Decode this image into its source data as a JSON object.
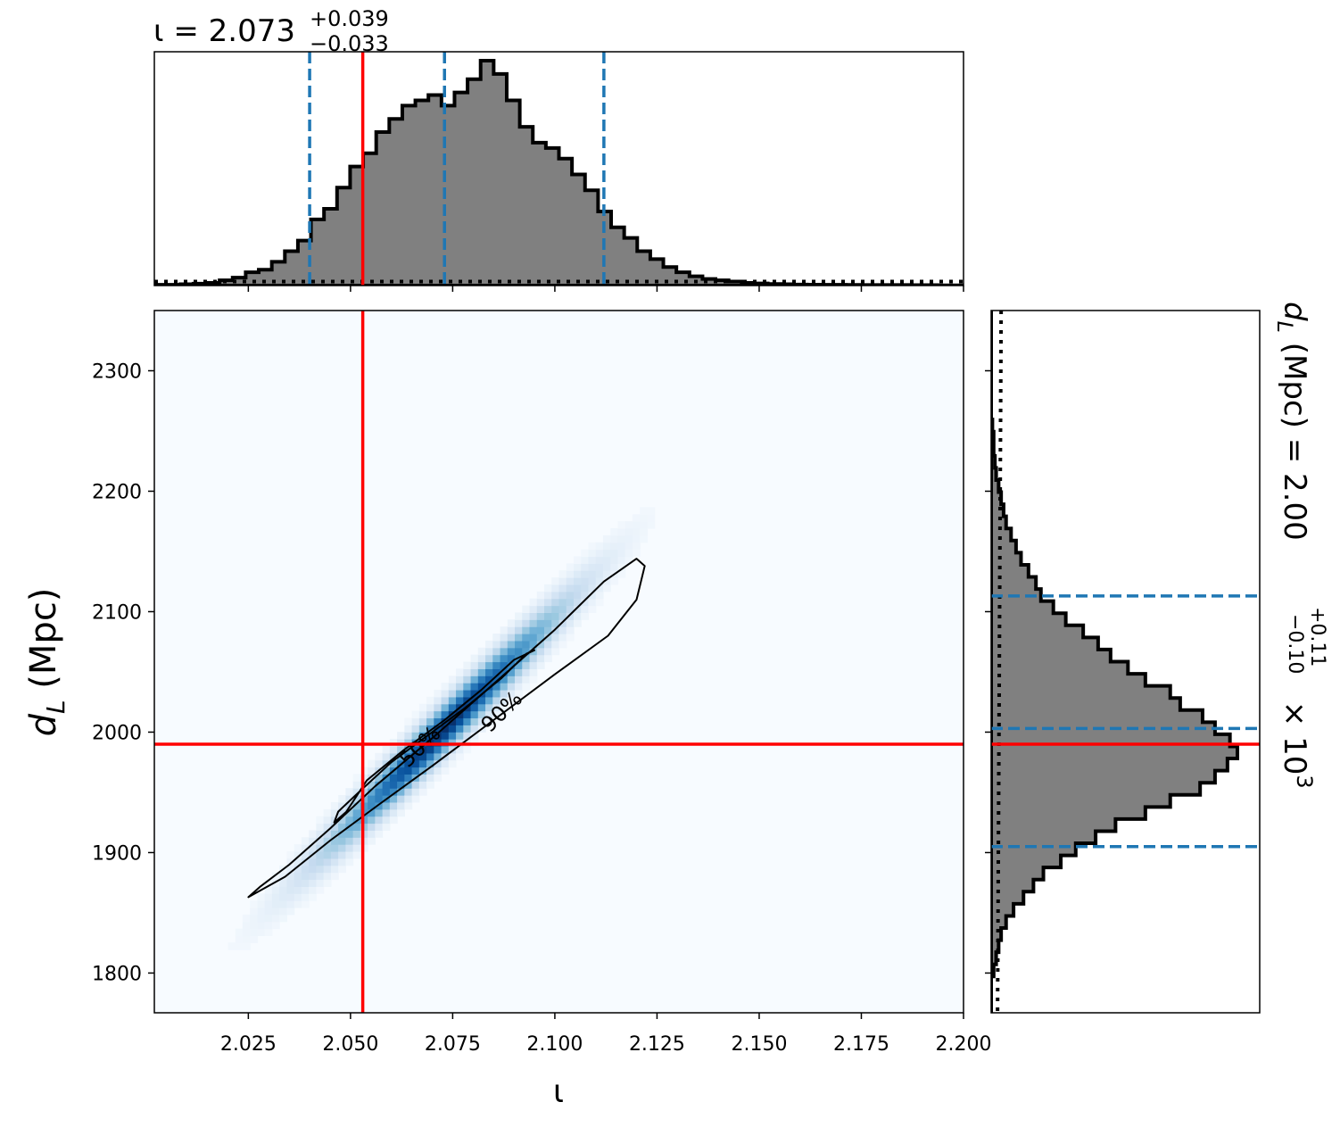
{
  "colors": {
    "hist_fill": "#808080",
    "hist_edge": "#000000",
    "quantile_line": "#1f77b4",
    "truth_line": "#ff0000",
    "prior_line": "#000000",
    "density_low": "#f7fbff",
    "density_high": "#08306b",
    "contour": "#000000"
  },
  "chart_data": [
    {
      "type": "histogram",
      "name": "iota-marginal",
      "title_parts": {
        "symbol": "ι",
        "eq": " = ",
        "median": "2.073",
        "upper": "+0.039",
        "lower": "−0.033"
      },
      "bin_range": [
        2.002,
        2.2
      ],
      "counts": [
        0.3,
        0.3,
        0.5,
        0.7,
        1,
        2,
        3,
        5,
        6,
        9,
        13,
        17,
        25,
        29,
        37,
        45,
        50,
        58,
        63,
        68,
        70,
        72,
        68,
        73,
        78,
        85,
        80,
        70,
        60,
        54,
        52,
        48,
        42,
        36,
        28,
        22,
        18,
        13,
        10,
        7,
        5,
        3.5,
        2.5,
        2,
        1.5,
        1,
        0.8,
        0.6,
        0.5,
        0.4,
        0.35,
        0.3,
        0.3,
        0.25,
        0.2,
        0.2,
        0.2,
        0.2,
        0.15,
        0.15,
        0.1,
        0.1
      ],
      "prior_level": 1.5,
      "quantiles": [
        2.04,
        2.073,
        2.112
      ],
      "truth": 2.053,
      "xlim": [
        2.002,
        2.2
      ]
    },
    {
      "type": "heatmap",
      "name": "iota-dL-joint",
      "xlabel": "ι",
      "ylabel_symbol": "d",
      "ylabel_sub": "L",
      "ylabel_unit": " (Mpc)",
      "xlim": [
        2.002,
        2.2
      ],
      "ylim": [
        1767,
        2350
      ],
      "xticks": [
        "2.025",
        "2.050",
        "2.075",
        "2.100",
        "2.125",
        "2.150",
        "2.175",
        "2.200"
      ],
      "yticks": [
        "1800",
        "1900",
        "2000",
        "2100",
        "2200",
        "2300"
      ],
      "density": {
        "center": [
          2.073,
          2003
        ],
        "sigma_x": 0.018,
        "dL_per_iota": 3450,
        "sigma_perp": 13
      },
      "contours": [
        {
          "label": "50%",
          "points": [
            [
              2.046,
              1925
            ],
            [
              2.047,
              1934
            ],
            [
              2.052,
              1950
            ],
            [
              2.06,
              1975
            ],
            [
              2.068,
              1995
            ],
            [
              2.078,
              2020
            ],
            [
              2.087,
              2045
            ],
            [
              2.093,
              2065
            ],
            [
              2.095,
              2068
            ],
            [
              2.09,
              2060
            ],
            [
              2.082,
              2035
            ],
            [
              2.073,
              2010
            ],
            [
              2.063,
              1985
            ],
            [
              2.054,
              1960
            ],
            [
              2.049,
              1934
            ],
            [
              2.046,
              1925
            ]
          ]
        },
        {
          "label": "90%",
          "points": [
            [
              2.025,
              1863
            ],
            [
              2.028,
              1872
            ],
            [
              2.035,
              1890
            ],
            [
              2.045,
              1920
            ],
            [
              2.056,
              1955
            ],
            [
              2.07,
              1995
            ],
            [
              2.085,
              2040
            ],
            [
              2.1,
              2085
            ],
            [
              2.112,
              2125
            ],
            [
              2.12,
              2144
            ],
            [
              2.122,
              2138
            ],
            [
              2.12,
              2110
            ],
            [
              2.113,
              2080
            ],
            [
              2.1,
              2048
            ],
            [
              2.085,
              2010
            ],
            [
              2.07,
              1972
            ],
            [
              2.057,
              1940
            ],
            [
              2.045,
              1910
            ],
            [
              2.034,
              1880
            ],
            [
              2.025,
              1863
            ]
          ]
        }
      ],
      "contour_labels": [
        {
          "text": "50%",
          "at": [
            2.067,
            1988
          ],
          "angle": -45
        },
        {
          "text": "90%",
          "at": [
            2.087,
            2017
          ],
          "angle": -45
        }
      ],
      "truth": [
        2.053,
        1990
      ]
    },
    {
      "type": "histogram",
      "orientation": "horizontal",
      "name": "dL-marginal",
      "title_parts": {
        "symbol": "d",
        "sub": "L",
        "unit": " (Mpc) = 2.00",
        "upper": "+0.11",
        "lower": "−0.10",
        "mult": " × 10",
        "exp": "3"
      },
      "bin_range": [
        1767,
        2350
      ],
      "counts": [
        0,
        0,
        0,
        0.01,
        0.02,
        0.03,
        0.04,
        0.06,
        0.09,
        0.13,
        0.17,
        0.21,
        0.28,
        0.34,
        0.42,
        0.5,
        0.62,
        0.72,
        0.84,
        0.9,
        0.95,
        0.99,
        0.96,
        0.9,
        0.85,
        0.76,
        0.72,
        0.62,
        0.55,
        0.48,
        0.43,
        0.37,
        0.3,
        0.25,
        0.2,
        0.18,
        0.15,
        0.12,
        0.1,
        0.08,
        0.06,
        0.05,
        0.04,
        0.03,
        0.02,
        0.015,
        0.01,
        0.01,
        0.005,
        0,
        0,
        0,
        0,
        0,
        0,
        0,
        0,
        0
      ],
      "prior_level": 0.04,
      "quantiles": [
        1905,
        2003,
        2113
      ],
      "truth": 1990,
      "ylim": [
        1767,
        2350
      ]
    }
  ]
}
